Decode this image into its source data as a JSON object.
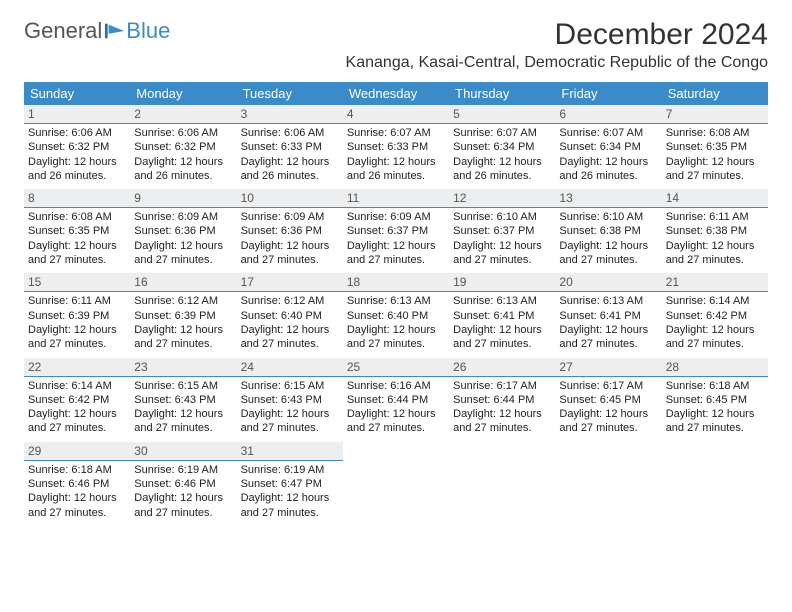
{
  "brand": {
    "part1": "General",
    "part2": "Blue"
  },
  "title": "December 2024",
  "subtitle": "Kananga, Kasai-Central, Democratic Republic of the Congo",
  "colors": {
    "header_bg": "#3b8bc9",
    "header_text": "#ffffff",
    "daynum_bg": "#eceeef",
    "daynum_border": "#3b8bc9",
    "body_text": "#222222",
    "page_bg": "#ffffff"
  },
  "fontsizes": {
    "title": 30,
    "subtitle": 16,
    "dayheader": 13,
    "daynum": 12,
    "detail": 11
  },
  "day_headers": [
    "Sunday",
    "Monday",
    "Tuesday",
    "Wednesday",
    "Thursday",
    "Friday",
    "Saturday"
  ],
  "weeks": [
    [
      {
        "n": "1",
        "sunrise": "Sunrise: 6:06 AM",
        "sunset": "Sunset: 6:32 PM",
        "daylight": "Daylight: 12 hours and 26 minutes."
      },
      {
        "n": "2",
        "sunrise": "Sunrise: 6:06 AM",
        "sunset": "Sunset: 6:32 PM",
        "daylight": "Daylight: 12 hours and 26 minutes."
      },
      {
        "n": "3",
        "sunrise": "Sunrise: 6:06 AM",
        "sunset": "Sunset: 6:33 PM",
        "daylight": "Daylight: 12 hours and 26 minutes."
      },
      {
        "n": "4",
        "sunrise": "Sunrise: 6:07 AM",
        "sunset": "Sunset: 6:33 PM",
        "daylight": "Daylight: 12 hours and 26 minutes."
      },
      {
        "n": "5",
        "sunrise": "Sunrise: 6:07 AM",
        "sunset": "Sunset: 6:34 PM",
        "daylight": "Daylight: 12 hours and 26 minutes."
      },
      {
        "n": "6",
        "sunrise": "Sunrise: 6:07 AM",
        "sunset": "Sunset: 6:34 PM",
        "daylight": "Daylight: 12 hours and 26 minutes."
      },
      {
        "n": "7",
        "sunrise": "Sunrise: 6:08 AM",
        "sunset": "Sunset: 6:35 PM",
        "daylight": "Daylight: 12 hours and 27 minutes."
      }
    ],
    [
      {
        "n": "8",
        "sunrise": "Sunrise: 6:08 AM",
        "sunset": "Sunset: 6:35 PM",
        "daylight": "Daylight: 12 hours and 27 minutes."
      },
      {
        "n": "9",
        "sunrise": "Sunrise: 6:09 AM",
        "sunset": "Sunset: 6:36 PM",
        "daylight": "Daylight: 12 hours and 27 minutes."
      },
      {
        "n": "10",
        "sunrise": "Sunrise: 6:09 AM",
        "sunset": "Sunset: 6:36 PM",
        "daylight": "Daylight: 12 hours and 27 minutes."
      },
      {
        "n": "11",
        "sunrise": "Sunrise: 6:09 AM",
        "sunset": "Sunset: 6:37 PM",
        "daylight": "Daylight: 12 hours and 27 minutes."
      },
      {
        "n": "12",
        "sunrise": "Sunrise: 6:10 AM",
        "sunset": "Sunset: 6:37 PM",
        "daylight": "Daylight: 12 hours and 27 minutes."
      },
      {
        "n": "13",
        "sunrise": "Sunrise: 6:10 AM",
        "sunset": "Sunset: 6:38 PM",
        "daylight": "Daylight: 12 hours and 27 minutes."
      },
      {
        "n": "14",
        "sunrise": "Sunrise: 6:11 AM",
        "sunset": "Sunset: 6:38 PM",
        "daylight": "Daylight: 12 hours and 27 minutes."
      }
    ],
    [
      {
        "n": "15",
        "sunrise": "Sunrise: 6:11 AM",
        "sunset": "Sunset: 6:39 PM",
        "daylight": "Daylight: 12 hours and 27 minutes."
      },
      {
        "n": "16",
        "sunrise": "Sunrise: 6:12 AM",
        "sunset": "Sunset: 6:39 PM",
        "daylight": "Daylight: 12 hours and 27 minutes."
      },
      {
        "n": "17",
        "sunrise": "Sunrise: 6:12 AM",
        "sunset": "Sunset: 6:40 PM",
        "daylight": "Daylight: 12 hours and 27 minutes."
      },
      {
        "n": "18",
        "sunrise": "Sunrise: 6:13 AM",
        "sunset": "Sunset: 6:40 PM",
        "daylight": "Daylight: 12 hours and 27 minutes."
      },
      {
        "n": "19",
        "sunrise": "Sunrise: 6:13 AM",
        "sunset": "Sunset: 6:41 PM",
        "daylight": "Daylight: 12 hours and 27 minutes."
      },
      {
        "n": "20",
        "sunrise": "Sunrise: 6:13 AM",
        "sunset": "Sunset: 6:41 PM",
        "daylight": "Daylight: 12 hours and 27 minutes."
      },
      {
        "n": "21",
        "sunrise": "Sunrise: 6:14 AM",
        "sunset": "Sunset: 6:42 PM",
        "daylight": "Daylight: 12 hours and 27 minutes."
      }
    ],
    [
      {
        "n": "22",
        "sunrise": "Sunrise: 6:14 AM",
        "sunset": "Sunset: 6:42 PM",
        "daylight": "Daylight: 12 hours and 27 minutes."
      },
      {
        "n": "23",
        "sunrise": "Sunrise: 6:15 AM",
        "sunset": "Sunset: 6:43 PM",
        "daylight": "Daylight: 12 hours and 27 minutes."
      },
      {
        "n": "24",
        "sunrise": "Sunrise: 6:15 AM",
        "sunset": "Sunset: 6:43 PM",
        "daylight": "Daylight: 12 hours and 27 minutes."
      },
      {
        "n": "25",
        "sunrise": "Sunrise: 6:16 AM",
        "sunset": "Sunset: 6:44 PM",
        "daylight": "Daylight: 12 hours and 27 minutes."
      },
      {
        "n": "26",
        "sunrise": "Sunrise: 6:17 AM",
        "sunset": "Sunset: 6:44 PM",
        "daylight": "Daylight: 12 hours and 27 minutes."
      },
      {
        "n": "27",
        "sunrise": "Sunrise: 6:17 AM",
        "sunset": "Sunset: 6:45 PM",
        "daylight": "Daylight: 12 hours and 27 minutes."
      },
      {
        "n": "28",
        "sunrise": "Sunrise: 6:18 AM",
        "sunset": "Sunset: 6:45 PM",
        "daylight": "Daylight: 12 hours and 27 minutes."
      }
    ],
    [
      {
        "n": "29",
        "sunrise": "Sunrise: 6:18 AM",
        "sunset": "Sunset: 6:46 PM",
        "daylight": "Daylight: 12 hours and 27 minutes."
      },
      {
        "n": "30",
        "sunrise": "Sunrise: 6:19 AM",
        "sunset": "Sunset: 6:46 PM",
        "daylight": "Daylight: 12 hours and 27 minutes."
      },
      {
        "n": "31",
        "sunrise": "Sunrise: 6:19 AM",
        "sunset": "Sunset: 6:47 PM",
        "daylight": "Daylight: 12 hours and 27 minutes."
      },
      null,
      null,
      null,
      null
    ]
  ]
}
